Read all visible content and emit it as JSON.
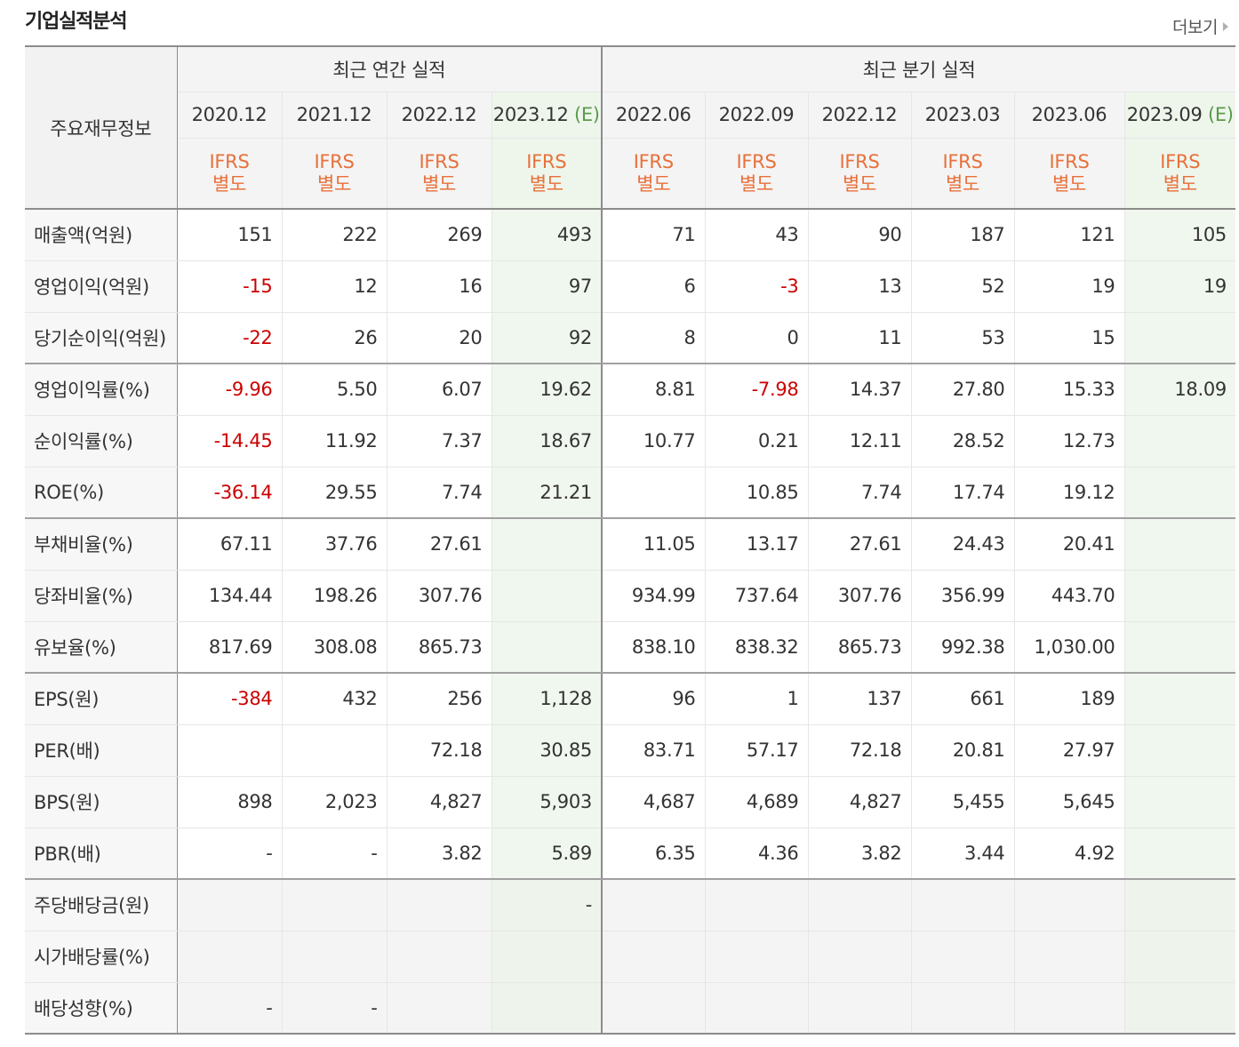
{
  "header": {
    "title": "기업실적분석",
    "more_label": "더보기"
  },
  "table": {
    "corner_label": "주요재무정보",
    "annual_group_label": "최근 연간 실적",
    "quarterly_group_label": "최근 분기 실적",
    "annual_periods": [
      {
        "label": "2020.12",
        "est": ""
      },
      {
        "label": "2021.12",
        "est": ""
      },
      {
        "label": "2022.12",
        "est": ""
      },
      {
        "label": "2023.12",
        "est": "(E)"
      }
    ],
    "quarterly_periods": [
      {
        "label": "2022.06",
        "est": ""
      },
      {
        "label": "2022.09",
        "est": ""
      },
      {
        "label": "2022.12",
        "est": ""
      },
      {
        "label": "2023.03",
        "est": ""
      },
      {
        "label": "2023.06",
        "est": ""
      },
      {
        "label": "2023.09",
        "est": "(E)"
      }
    ],
    "basis_line1": "IFRS",
    "basis_line2": "별도",
    "rows": [
      {
        "label": "매출액(억원)",
        "values": [
          "151",
          "222",
          "269",
          "493",
          "71",
          "43",
          "90",
          "187",
          "121",
          "105"
        ],
        "neg": [
          0,
          0,
          0,
          0,
          0,
          0,
          0,
          0,
          0,
          0
        ],
        "group_end": false,
        "dividend": false
      },
      {
        "label": "영업이익(억원)",
        "values": [
          "-15",
          "12",
          "16",
          "97",
          "6",
          "-3",
          "13",
          "52",
          "19",
          "19"
        ],
        "neg": [
          1,
          0,
          0,
          0,
          0,
          1,
          0,
          0,
          0,
          0
        ],
        "group_end": false,
        "dividend": false
      },
      {
        "label": "당기순이익(억원)",
        "values": [
          "-22",
          "26",
          "20",
          "92",
          "8",
          "0",
          "11",
          "53",
          "15",
          ""
        ],
        "neg": [
          1,
          0,
          0,
          0,
          0,
          0,
          0,
          0,
          0,
          0
        ],
        "group_end": true,
        "dividend": false
      },
      {
        "label": "영업이익률(%)",
        "values": [
          "-9.96",
          "5.50",
          "6.07",
          "19.62",
          "8.81",
          "-7.98",
          "14.37",
          "27.80",
          "15.33",
          "18.09"
        ],
        "neg": [
          1,
          0,
          0,
          0,
          0,
          1,
          0,
          0,
          0,
          0
        ],
        "group_end": false,
        "dividend": false
      },
      {
        "label": "순이익률(%)",
        "values": [
          "-14.45",
          "11.92",
          "7.37",
          "18.67",
          "10.77",
          "0.21",
          "12.11",
          "28.52",
          "12.73",
          ""
        ],
        "neg": [
          1,
          0,
          0,
          0,
          0,
          0,
          0,
          0,
          0,
          0
        ],
        "group_end": false,
        "dividend": false
      },
      {
        "label": "ROE(%)",
        "values": [
          "-36.14",
          "29.55",
          "7.74",
          "21.21",
          "",
          "10.85",
          "7.74",
          "17.74",
          "19.12",
          ""
        ],
        "neg": [
          1,
          0,
          0,
          0,
          0,
          0,
          0,
          0,
          0,
          0
        ],
        "group_end": true,
        "dividend": false
      },
      {
        "label": "부채비율(%)",
        "values": [
          "67.11",
          "37.76",
          "27.61",
          "",
          "11.05",
          "13.17",
          "27.61",
          "24.43",
          "20.41",
          ""
        ],
        "neg": [
          0,
          0,
          0,
          0,
          0,
          0,
          0,
          0,
          0,
          0
        ],
        "group_end": false,
        "dividend": false
      },
      {
        "label": "당좌비율(%)",
        "values": [
          "134.44",
          "198.26",
          "307.76",
          "",
          "934.99",
          "737.64",
          "307.76",
          "356.99",
          "443.70",
          ""
        ],
        "neg": [
          0,
          0,
          0,
          0,
          0,
          0,
          0,
          0,
          0,
          0
        ],
        "group_end": false,
        "dividend": false
      },
      {
        "label": "유보율(%)",
        "values": [
          "817.69",
          "308.08",
          "865.73",
          "",
          "838.10",
          "838.32",
          "865.73",
          "992.38",
          "1,030.00",
          ""
        ],
        "neg": [
          0,
          0,
          0,
          0,
          0,
          0,
          0,
          0,
          0,
          0
        ],
        "group_end": true,
        "dividend": false
      },
      {
        "label": "EPS(원)",
        "values": [
          "-384",
          "432",
          "256",
          "1,128",
          "96",
          "1",
          "137",
          "661",
          "189",
          ""
        ],
        "neg": [
          1,
          0,
          0,
          0,
          0,
          0,
          0,
          0,
          0,
          0
        ],
        "group_end": false,
        "dividend": false
      },
      {
        "label": "PER(배)",
        "values": [
          "",
          "",
          "72.18",
          "30.85",
          "83.71",
          "57.17",
          "72.18",
          "20.81",
          "27.97",
          ""
        ],
        "neg": [
          0,
          0,
          0,
          0,
          0,
          0,
          0,
          0,
          0,
          0
        ],
        "group_end": false,
        "dividend": false
      },
      {
        "label": "BPS(원)",
        "values": [
          "898",
          "2,023",
          "4,827",
          "5,903",
          "4,687",
          "4,689",
          "4,827",
          "5,455",
          "5,645",
          ""
        ],
        "neg": [
          0,
          0,
          0,
          0,
          0,
          0,
          0,
          0,
          0,
          0
        ],
        "group_end": false,
        "dividend": false
      },
      {
        "label": "PBR(배)",
        "values": [
          "-",
          "-",
          "3.82",
          "5.89",
          "6.35",
          "4.36",
          "3.82",
          "3.44",
          "4.92",
          ""
        ],
        "neg": [
          0,
          0,
          0,
          0,
          0,
          0,
          0,
          0,
          0,
          0
        ],
        "group_end": true,
        "dividend": false
      },
      {
        "label": "주당배당금(원)",
        "values": [
          "",
          "",
          "",
          "-",
          "",
          "",
          "",
          "",
          "",
          ""
        ],
        "neg": [
          0,
          0,
          0,
          0,
          0,
          0,
          0,
          0,
          0,
          0
        ],
        "group_end": false,
        "dividend": true
      },
      {
        "label": "시가배당률(%)",
        "values": [
          "",
          "",
          "",
          "",
          "",
          "",
          "",
          "",
          "",
          ""
        ],
        "neg": [
          0,
          0,
          0,
          0,
          0,
          0,
          0,
          0,
          0,
          0
        ],
        "group_end": false,
        "dividend": true
      },
      {
        "label": "배당성향(%)",
        "values": [
          "-",
          "-",
          "",
          "",
          "",
          "",
          "",
          "",
          "",
          ""
        ],
        "neg": [
          0,
          0,
          0,
          0,
          0,
          0,
          0,
          0,
          0,
          0
        ],
        "group_end": false,
        "dividend": true
      }
    ]
  }
}
